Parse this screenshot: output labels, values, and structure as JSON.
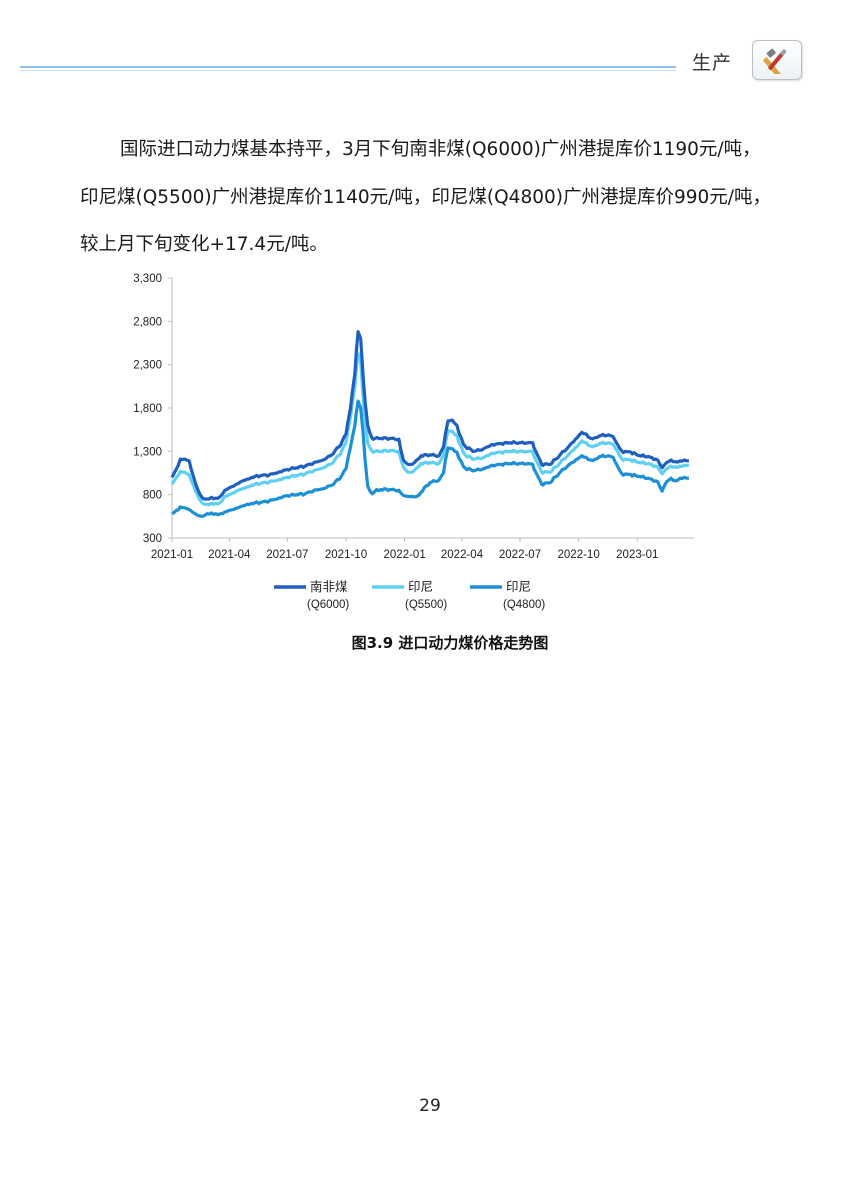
{
  "header": {
    "section_label": "生产",
    "section_icon": "tools-icon"
  },
  "paragraph": {
    "lines": [
      "国际进口动力煤基本持平，3月下旬南非煤(Q6000)广州港提库价1190元/吨，",
      "印尼煤(Q5500)广州港提库价1140元/吨，印尼煤(Q4800)广州港提库价990元/吨，",
      "较上月下旬变化+17.4元/吨。"
    ]
  },
  "chart_data": {
    "type": "line",
    "ylim": [
      300,
      3300
    ],
    "yticks": [
      "3,300",
      "2,800",
      "2,300",
      "1,800",
      "1,300",
      "800",
      "300"
    ],
    "xticks": [
      "2021-01",
      "2021-04",
      "2021-07",
      "2021-10",
      "2022-01",
      "2022-04",
      "2022-07",
      "2022-10",
      "2023-01"
    ],
    "x_range": [
      "2021-01",
      "2023-03"
    ],
    "grid": false,
    "legend_position": "bottom",
    "series": [
      {
        "name_line1": "南非煤",
        "name_line2": "(Q6000)",
        "color": "#1f5fc0",
        "points": [
          [
            "2021-01-01",
            1000
          ],
          [
            "2021-01-08",
            1100
          ],
          [
            "2021-01-14",
            1210
          ],
          [
            "2021-01-21",
            1210
          ],
          [
            "2021-01-28",
            1190
          ],
          [
            "2021-02-04",
            1000
          ],
          [
            "2021-02-11",
            850
          ],
          [
            "2021-02-18",
            760
          ],
          [
            "2021-02-25",
            750
          ],
          [
            "2021-03-04",
            770
          ],
          [
            "2021-03-11",
            760
          ],
          [
            "2021-03-18",
            780
          ],
          [
            "2021-03-25",
            850
          ],
          [
            "2021-04-01",
            880
          ],
          [
            "2021-04-08",
            900
          ],
          [
            "2021-04-15",
            930
          ],
          [
            "2021-04-22",
            960
          ],
          [
            "2021-04-29",
            980
          ],
          [
            "2021-05-06",
            1000
          ],
          [
            "2021-05-20",
            1020
          ],
          [
            "2021-06-03",
            1030
          ],
          [
            "2021-06-17",
            1060
          ],
          [
            "2021-07-01",
            1090
          ],
          [
            "2021-07-15",
            1110
          ],
          [
            "2021-07-29",
            1130
          ],
          [
            "2021-08-12",
            1170
          ],
          [
            "2021-08-26",
            1200
          ],
          [
            "2021-09-09",
            1260
          ],
          [
            "2021-09-23",
            1380
          ],
          [
            "2021-10-01",
            1500
          ],
          [
            "2021-10-08",
            1800
          ],
          [
            "2021-10-15",
            2200
          ],
          [
            "2021-10-20",
            2680
          ],
          [
            "2021-10-24",
            2600
          ],
          [
            "2021-10-28",
            2150
          ],
          [
            "2021-11-04",
            1600
          ],
          [
            "2021-11-11",
            1450
          ],
          [
            "2021-11-25",
            1450
          ],
          [
            "2021-12-09",
            1450
          ],
          [
            "2021-12-23",
            1440
          ],
          [
            "2021-12-30",
            1200
          ],
          [
            "2022-01-06",
            1150
          ],
          [
            "2022-01-13",
            1150
          ],
          [
            "2022-01-20",
            1200
          ],
          [
            "2022-01-27",
            1250
          ],
          [
            "2022-02-10",
            1260
          ],
          [
            "2022-02-24",
            1250
          ],
          [
            "2022-03-03",
            1350
          ],
          [
            "2022-03-10",
            1650
          ],
          [
            "2022-03-17",
            1660
          ],
          [
            "2022-03-24",
            1600
          ],
          [
            "2022-03-31",
            1450
          ],
          [
            "2022-04-07",
            1350
          ],
          [
            "2022-04-21",
            1300
          ],
          [
            "2022-05-05",
            1330
          ],
          [
            "2022-05-19",
            1380
          ],
          [
            "2022-06-02",
            1390
          ],
          [
            "2022-06-16",
            1400
          ],
          [
            "2022-06-30",
            1400
          ],
          [
            "2022-07-14",
            1400
          ],
          [
            "2022-07-21",
            1400
          ],
          [
            "2022-08-04",
            1150
          ],
          [
            "2022-08-18",
            1150
          ],
          [
            "2022-09-01",
            1250
          ],
          [
            "2022-09-15",
            1350
          ],
          [
            "2022-09-29",
            1460
          ],
          [
            "2022-10-06",
            1520
          ],
          [
            "2022-10-13",
            1500
          ],
          [
            "2022-10-20",
            1450
          ],
          [
            "2022-10-27",
            1460
          ],
          [
            "2022-11-03",
            1480
          ],
          [
            "2022-11-17",
            1490
          ],
          [
            "2022-11-24",
            1470
          ],
          [
            "2022-12-01",
            1380
          ],
          [
            "2022-12-08",
            1300
          ],
          [
            "2022-12-22",
            1290
          ],
          [
            "2023-01-05",
            1250
          ],
          [
            "2023-01-19",
            1240
          ],
          [
            "2023-02-02",
            1200
          ],
          [
            "2023-02-09",
            1110
          ],
          [
            "2023-02-16",
            1170
          ],
          [
            "2023-02-23",
            1200
          ],
          [
            "2023-03-02",
            1180
          ],
          [
            "2023-03-09",
            1190
          ],
          [
            "2023-03-16",
            1200
          ],
          [
            "2023-03-23",
            1190
          ]
        ]
      },
      {
        "name_line1": "印尼",
        "name_line2": "(Q5500)",
        "color": "#5fd0f2",
        "points": [
          [
            "2021-01-01",
            920
          ],
          [
            "2021-01-08",
            1000
          ],
          [
            "2021-01-14",
            1070
          ],
          [
            "2021-01-21",
            1060
          ],
          [
            "2021-01-28",
            1030
          ],
          [
            "2021-02-04",
            900
          ],
          [
            "2021-02-11",
            780
          ],
          [
            "2021-02-18",
            700
          ],
          [
            "2021-02-25",
            690
          ],
          [
            "2021-03-04",
            700
          ],
          [
            "2021-03-11",
            700
          ],
          [
            "2021-03-18",
            710
          ],
          [
            "2021-03-25",
            780
          ],
          [
            "2021-04-01",
            800
          ],
          [
            "2021-04-08",
            820
          ],
          [
            "2021-04-15",
            850
          ],
          [
            "2021-04-22",
            870
          ],
          [
            "2021-04-29",
            890
          ],
          [
            "2021-05-06",
            910
          ],
          [
            "2021-05-20",
            930
          ],
          [
            "2021-06-03",
            950
          ],
          [
            "2021-06-17",
            970
          ],
          [
            "2021-07-01",
            1000
          ],
          [
            "2021-07-15",
            1020
          ],
          [
            "2021-07-29",
            1040
          ],
          [
            "2021-08-12",
            1080
          ],
          [
            "2021-08-26",
            1110
          ],
          [
            "2021-09-09",
            1160
          ],
          [
            "2021-09-23",
            1280
          ],
          [
            "2021-10-01",
            1400
          ],
          [
            "2021-10-08",
            1700
          ],
          [
            "2021-10-15",
            2050
          ],
          [
            "2021-10-20",
            2430
          ],
          [
            "2021-10-24",
            2350
          ],
          [
            "2021-10-28",
            1900
          ],
          [
            "2021-11-04",
            1400
          ],
          [
            "2021-11-11",
            1300
          ],
          [
            "2021-11-25",
            1300
          ],
          [
            "2021-12-09",
            1310
          ],
          [
            "2021-12-23",
            1300
          ],
          [
            "2021-12-30",
            1120
          ],
          [
            "2022-01-06",
            1060
          ],
          [
            "2022-01-13",
            1060
          ],
          [
            "2022-01-20",
            1110
          ],
          [
            "2022-01-27",
            1160
          ],
          [
            "2022-02-10",
            1170
          ],
          [
            "2022-02-24",
            1160
          ],
          [
            "2022-03-03",
            1250
          ],
          [
            "2022-03-10",
            1540
          ],
          [
            "2022-03-17",
            1530
          ],
          [
            "2022-03-24",
            1480
          ],
          [
            "2022-03-31",
            1350
          ],
          [
            "2022-04-07",
            1250
          ],
          [
            "2022-04-21",
            1210
          ],
          [
            "2022-05-05",
            1230
          ],
          [
            "2022-05-19",
            1280
          ],
          [
            "2022-06-02",
            1290
          ],
          [
            "2022-06-16",
            1300
          ],
          [
            "2022-06-30",
            1300
          ],
          [
            "2022-07-14",
            1300
          ],
          [
            "2022-07-21",
            1300
          ],
          [
            "2022-08-04",
            1060
          ],
          [
            "2022-08-18",
            1060
          ],
          [
            "2022-09-01",
            1160
          ],
          [
            "2022-09-15",
            1260
          ],
          [
            "2022-09-29",
            1360
          ],
          [
            "2022-10-06",
            1420
          ],
          [
            "2022-10-13",
            1400
          ],
          [
            "2022-10-20",
            1360
          ],
          [
            "2022-10-27",
            1370
          ],
          [
            "2022-11-03",
            1390
          ],
          [
            "2022-11-17",
            1400
          ],
          [
            "2022-11-24",
            1380
          ],
          [
            "2022-12-01",
            1300
          ],
          [
            "2022-12-08",
            1210
          ],
          [
            "2022-12-22",
            1200
          ],
          [
            "2023-01-05",
            1170
          ],
          [
            "2023-01-19",
            1160
          ],
          [
            "2023-02-02",
            1120
          ],
          [
            "2023-02-09",
            1040
          ],
          [
            "2023-02-16",
            1100
          ],
          [
            "2023-02-23",
            1130
          ],
          [
            "2023-03-02",
            1120
          ],
          [
            "2023-03-09",
            1130
          ],
          [
            "2023-03-16",
            1140
          ],
          [
            "2023-03-23",
            1140
          ]
        ]
      },
      {
        "name_line1": "印尼",
        "name_line2": "(Q4800)",
        "color": "#1c8fd6",
        "points": [
          [
            "2021-01-01",
            580
          ],
          [
            "2021-01-08",
            620
          ],
          [
            "2021-01-14",
            660
          ],
          [
            "2021-01-21",
            650
          ],
          [
            "2021-01-28",
            630
          ],
          [
            "2021-02-04",
            590
          ],
          [
            "2021-02-11",
            560
          ],
          [
            "2021-02-18",
            550
          ],
          [
            "2021-02-25",
            580
          ],
          [
            "2021-03-04",
            590
          ],
          [
            "2021-03-11",
            580
          ],
          [
            "2021-03-18",
            580
          ],
          [
            "2021-03-25",
            600
          ],
          [
            "2021-04-01",
            620
          ],
          [
            "2021-04-08",
            630
          ],
          [
            "2021-04-15",
            650
          ],
          [
            "2021-04-22",
            670
          ],
          [
            "2021-04-29",
            690
          ],
          [
            "2021-05-06",
            700
          ],
          [
            "2021-05-20",
            710
          ],
          [
            "2021-06-03",
            730
          ],
          [
            "2021-06-17",
            760
          ],
          [
            "2021-07-01",
            790
          ],
          [
            "2021-07-15",
            800
          ],
          [
            "2021-07-29",
            810
          ],
          [
            "2021-08-12",
            850
          ],
          [
            "2021-08-26",
            870
          ],
          [
            "2021-09-09",
            910
          ],
          [
            "2021-09-23",
            1000
          ],
          [
            "2021-10-01",
            1100
          ],
          [
            "2021-10-08",
            1350
          ],
          [
            "2021-10-15",
            1600
          ],
          [
            "2021-10-20",
            1880
          ],
          [
            "2021-10-24",
            1800
          ],
          [
            "2021-10-28",
            1500
          ],
          [
            "2021-11-04",
            900
          ],
          [
            "2021-11-11",
            810
          ],
          [
            "2021-11-18",
            860
          ],
          [
            "2021-11-25",
            860
          ],
          [
            "2021-12-09",
            860
          ],
          [
            "2021-12-23",
            850
          ],
          [
            "2021-12-30",
            790
          ],
          [
            "2022-01-06",
            780
          ],
          [
            "2022-01-13",
            780
          ],
          [
            "2022-01-20",
            780
          ],
          [
            "2022-01-27",
            830
          ],
          [
            "2022-02-10",
            940
          ],
          [
            "2022-02-24",
            970
          ],
          [
            "2022-03-03",
            1050
          ],
          [
            "2022-03-10",
            1340
          ],
          [
            "2022-03-17",
            1330
          ],
          [
            "2022-03-24",
            1290
          ],
          [
            "2022-03-31",
            1180
          ],
          [
            "2022-04-07",
            1100
          ],
          [
            "2022-04-21",
            1080
          ],
          [
            "2022-05-05",
            1100
          ],
          [
            "2022-05-19",
            1140
          ],
          [
            "2022-06-02",
            1150
          ],
          [
            "2022-06-16",
            1160
          ],
          [
            "2022-06-30",
            1160
          ],
          [
            "2022-07-14",
            1160
          ],
          [
            "2022-07-21",
            1150
          ],
          [
            "2022-08-04",
            920
          ],
          [
            "2022-08-18",
            940
          ],
          [
            "2022-09-01",
            1050
          ],
          [
            "2022-09-15",
            1140
          ],
          [
            "2022-09-29",
            1210
          ],
          [
            "2022-10-06",
            1250
          ],
          [
            "2022-10-13",
            1230
          ],
          [
            "2022-10-20",
            1200
          ],
          [
            "2022-10-27",
            1210
          ],
          [
            "2022-11-03",
            1240
          ],
          [
            "2022-11-17",
            1250
          ],
          [
            "2022-11-24",
            1230
          ],
          [
            "2022-12-01",
            1130
          ],
          [
            "2022-12-08",
            1040
          ],
          [
            "2022-12-22",
            1030
          ],
          [
            "2023-01-05",
            1010
          ],
          [
            "2023-01-19",
            990
          ],
          [
            "2023-02-02",
            950
          ],
          [
            "2023-02-09",
            840
          ],
          [
            "2023-02-16",
            950
          ],
          [
            "2023-02-23",
            990
          ],
          [
            "2023-03-02",
            960
          ],
          [
            "2023-03-09",
            990
          ],
          [
            "2023-03-16",
            1000
          ],
          [
            "2023-03-23",
            990
          ]
        ]
      }
    ]
  },
  "caption": "图3.9  进口动力煤价格走势图",
  "page_number": "29"
}
